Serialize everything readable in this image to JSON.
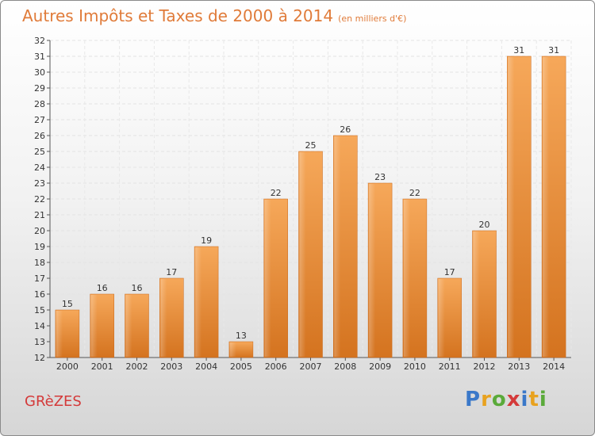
{
  "chart_data": {
    "type": "bar",
    "title": "Autres Impôts et Taxes de 2000 à 2014",
    "subtitle": "(en milliers d'€)",
    "categories": [
      "2000",
      "2001",
      "2002",
      "2003",
      "2004",
      "2005",
      "2006",
      "2007",
      "2008",
      "2009",
      "2010",
      "2011",
      "2012",
      "2013",
      "2014"
    ],
    "values": [
      15,
      16,
      16,
      17,
      19,
      13,
      22,
      25,
      26,
      23,
      22,
      17,
      20,
      31,
      31
    ],
    "xlabel": "",
    "ylabel": "",
    "ylim": [
      12,
      32
    ],
    "yticks": [
      12,
      13,
      14,
      15,
      16,
      17,
      18,
      19,
      20,
      21,
      22,
      23,
      24,
      25,
      26,
      27,
      28,
      29,
      30,
      31,
      32
    ],
    "grid": true,
    "bar_color": "#f0953f"
  },
  "footer": {
    "commune": "GRèZES",
    "brand_letters": [
      {
        "char": "P",
        "color": "#3a78c9"
      },
      {
        "char": "r",
        "color": "#e8a21f"
      },
      {
        "char": "o",
        "color": "#5aaa3a"
      },
      {
        "char": "x",
        "color": "#d43a3a"
      },
      {
        "char": "i",
        "color": "#3a78c9"
      },
      {
        "char": "t",
        "color": "#e8a21f"
      },
      {
        "char": "i",
        "color": "#5aaa3a"
      }
    ]
  }
}
